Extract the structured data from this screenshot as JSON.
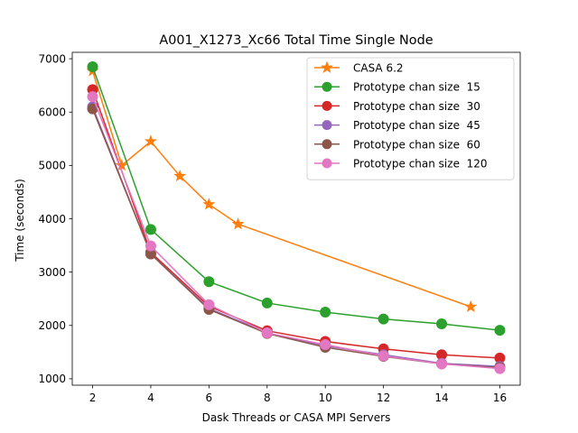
{
  "chart_data": {
    "type": "line",
    "title": "A001_X1273_Xc66 Total Time Single Node",
    "xlabel": "Dask Threads or CASA MPI Servers",
    "ylabel": "Time (seconds)",
    "xlim": [
      1.3,
      16.7
    ],
    "ylim": [
      880,
      7120
    ],
    "xticks": [
      2,
      4,
      6,
      8,
      10,
      12,
      14,
      16
    ],
    "yticks": [
      1000,
      2000,
      3000,
      4000,
      5000,
      6000,
      7000
    ],
    "grid": false,
    "legend_position": "top-right",
    "series": [
      {
        "name": "CASA 6.2",
        "color": "#ff7f0e",
        "marker": "star",
        "x": [
          2,
          3,
          4,
          5,
          6,
          7,
          15
        ],
        "y": [
          6770,
          5000,
          5450,
          4800,
          4270,
          3900,
          2350
        ]
      },
      {
        "name": "Prototype chan size  15",
        "color": "#2ca02c",
        "marker": "circle",
        "x": [
          2,
          4,
          6,
          8,
          10,
          12,
          14,
          16
        ],
        "y": [
          6850,
          3800,
          2820,
          2420,
          2250,
          2120,
          2030,
          1910
        ]
      },
      {
        "name": "Prototype chan size  30",
        "color": "#d62728",
        "marker": "circle",
        "x": [
          2,
          4,
          6,
          8,
          10,
          12,
          14,
          16
        ],
        "y": [
          6420,
          3370,
          2360,
          1900,
          1700,
          1560,
          1450,
          1390
        ]
      },
      {
        "name": "Prototype chan size  45",
        "color": "#9467bd",
        "marker": "circle",
        "x": [
          2,
          4,
          6,
          8,
          10,
          12,
          14,
          16
        ],
        "y": [
          6100,
          3340,
          2320,
          1860,
          1620,
          1450,
          1290,
          1230
        ]
      },
      {
        "name": "Prototype chan size  60",
        "color": "#8c564b",
        "marker": "circle",
        "x": [
          2,
          4,
          6,
          8,
          10,
          12,
          14,
          16
        ],
        "y": [
          6060,
          3340,
          2300,
          1850,
          1590,
          1420,
          1280,
          1210
        ]
      },
      {
        "name": "Prototype chan size  120",
        "color": "#e377c2",
        "marker": "circle",
        "x": [
          2,
          4,
          6,
          8,
          10,
          12,
          14,
          16
        ],
        "y": [
          6290,
          3490,
          2390,
          1860,
          1640,
          1430,
          1280,
          1190
        ]
      }
    ]
  }
}
